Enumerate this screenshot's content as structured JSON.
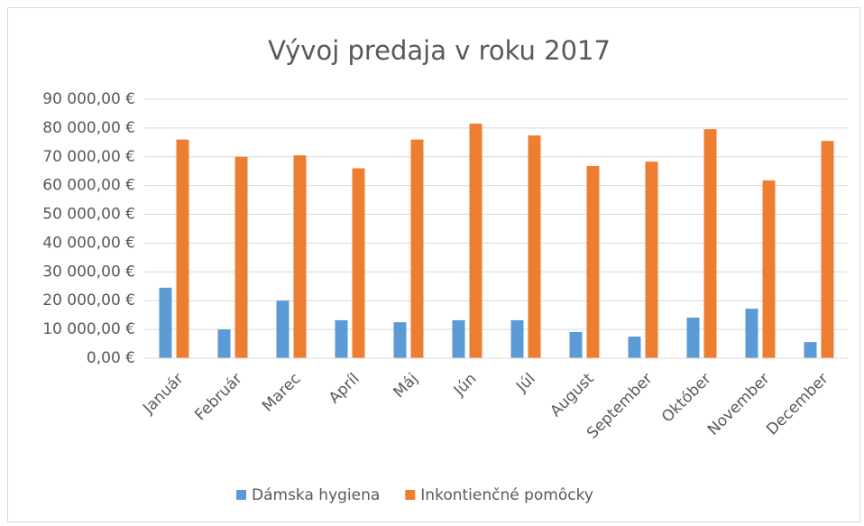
{
  "chart_data": {
    "type": "bar",
    "title": "Vývoj predaja v roku 2017",
    "categories": [
      "Január",
      "Február",
      "Marec",
      "Apríl",
      "Máj",
      "Jún",
      "Júl",
      "August",
      "September",
      "Október",
      "November",
      "December"
    ],
    "series": [
      {
        "name": "Dámska hygiena",
        "color": "#5b9bd5",
        "values": [
          24500,
          10000,
          20000,
          13200,
          12500,
          13200,
          13200,
          9100,
          7500,
          14100,
          17200,
          5600
        ]
      },
      {
        "name": "Inkontienčné pomôcky",
        "color": "#ed7d31",
        "values": [
          76000,
          70000,
          70500,
          66000,
          76000,
          81500,
          77400,
          66800,
          68300,
          79600,
          61800,
          75500
        ]
      }
    ],
    "ylim": [
      0,
      90000
    ],
    "yticks": [
      {
        "value": 0,
        "label": "0,00 €"
      },
      {
        "value": 10000,
        "label": "10 000,00 €"
      },
      {
        "value": 20000,
        "label": "20 000,00 €"
      },
      {
        "value": 30000,
        "label": "30 000,00 €"
      },
      {
        "value": 40000,
        "label": "40 000,00 €"
      },
      {
        "value": 50000,
        "label": "50 000,00 €"
      },
      {
        "value": 60000,
        "label": "60 000,00 €"
      },
      {
        "value": 70000,
        "label": "70 000,00 €"
      },
      {
        "value": 80000,
        "label": "80 000,00 €"
      },
      {
        "value": 90000,
        "label": "90 000,00 €"
      }
    ],
    "grid": true,
    "legend": "bottom"
  }
}
